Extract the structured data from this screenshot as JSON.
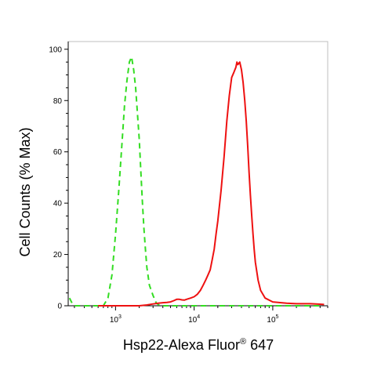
{
  "chart_data": {
    "type": "line",
    "title": "",
    "xlabel_main": "Hsp22-Alexa Fluor",
    "xlabel_reg": "®",
    "xlabel_tail": " 647",
    "ylabel": "Cell Counts (% Max)",
    "x_scale": "log",
    "xlim": [
      250,
      500000
    ],
    "ylim": [
      0,
      103
    ],
    "grid": false,
    "y_ticks": [
      "0",
      "20",
      "40",
      "60",
      "80",
      "100"
    ],
    "y_tick_values": [
      0,
      20,
      40,
      60,
      80,
      100
    ],
    "x_ticks": [
      {
        "base": "10",
        "exp": "3",
        "value": 1000
      },
      {
        "base": "10",
        "exp": "4",
        "value": 10000
      },
      {
        "base": "10",
        "exp": "5",
        "value": 100000
      }
    ],
    "series": [
      {
        "color": "#33dd22",
        "style": "dashed",
        "x": [
          260,
          280,
          300,
          340,
          420,
          600,
          700,
          800,
          900,
          1000,
          1100,
          1200,
          1300,
          1400,
          1500,
          1600,
          1700,
          1800,
          1900,
          2000,
          2100,
          2200,
          2300,
          2400,
          2500,
          2700,
          3000,
          3300,
          3700,
          5000,
          10000,
          30000,
          100000,
          400000
        ],
        "y": [
          3,
          1,
          0,
          0,
          0,
          0,
          0,
          3,
          12,
          28,
          45,
          62,
          78,
          88,
          95,
          97,
          92,
          85,
          75,
          65,
          52,
          40,
          30,
          22,
          15,
          8,
          4,
          1,
          0,
          0,
          0,
          0,
          0,
          0
        ]
      },
      {
        "color": "#ee1111",
        "style": "solid",
        "x": [
          600,
          800,
          1000,
          1500,
          2000,
          2500,
          3000,
          3500,
          4000,
          4500,
          5000,
          5500,
          6000,
          6500,
          7000,
          7500,
          8000,
          9000,
          10000,
          11000,
          12000,
          13000,
          14000,
          15000,
          16000,
          17000,
          18000,
          19000,
          20000,
          22000,
          24000,
          26000,
          28000,
          30000,
          32000,
          34000,
          35000,
          36000,
          38000,
          40000,
          42000,
          44000,
          46000,
          48000,
          50000,
          52000,
          54000,
          56000,
          58000,
          60000,
          65000,
          70000,
          80000,
          100000,
          150000,
          200000,
          300000,
          400000,
          450000
        ],
        "y": [
          0,
          0,
          0,
          0,
          0,
          0.3,
          0.7,
          1,
          1.2,
          1.3,
          1.5,
          2,
          2.5,
          2.5,
          2.3,
          2.2,
          2.5,
          3,
          3.5,
          4.5,
          6,
          8,
          10,
          12,
          14,
          18,
          22,
          28,
          33,
          45,
          58,
          72,
          82,
          89,
          91,
          93,
          95,
          94,
          95,
          92,
          87,
          80,
          72,
          62,
          52,
          43,
          35,
          28,
          22,
          17,
          10,
          6,
          3,
          1.5,
          1,
          0.8,
          0.8,
          0.6,
          0.5
        ]
      }
    ]
  }
}
